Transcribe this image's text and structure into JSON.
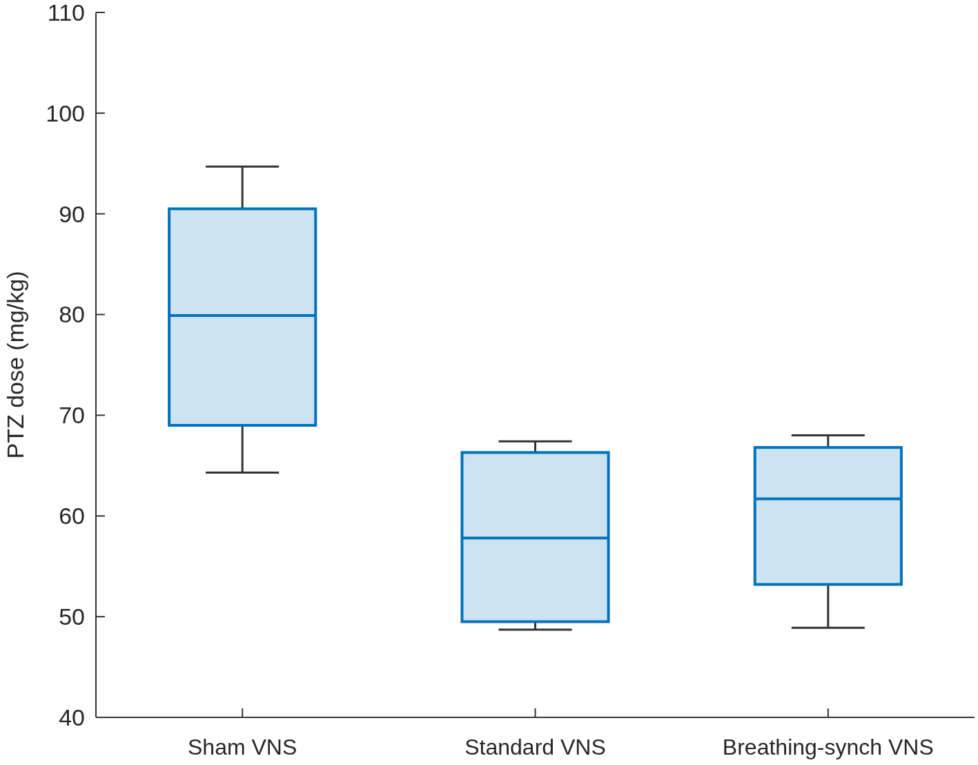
{
  "chart_data": {
    "type": "box",
    "ylabel": "PTZ dose (mg/kg)",
    "categories": [
      "Sham VNS",
      "Standard VNS",
      "Breathing-synch VNS"
    ],
    "ylim": [
      40,
      110
    ],
    "yticks": [
      40,
      50,
      60,
      70,
      80,
      90,
      100,
      110
    ],
    "grid": false,
    "series": [
      {
        "color": "#0072bd",
        "boxes": [
          {
            "low": 64.3,
            "q1": 69.0,
            "median": 79.9,
            "q3": 90.5,
            "high": 94.7
          },
          {
            "low": 48.7,
            "q1": 49.5,
            "median": 57.8,
            "q3": 66.3,
            "high": 67.4
          },
          {
            "low": 48.9,
            "q1": 53.2,
            "median": 61.7,
            "q3": 66.8,
            "high": 68.0
          }
        ]
      }
    ]
  }
}
